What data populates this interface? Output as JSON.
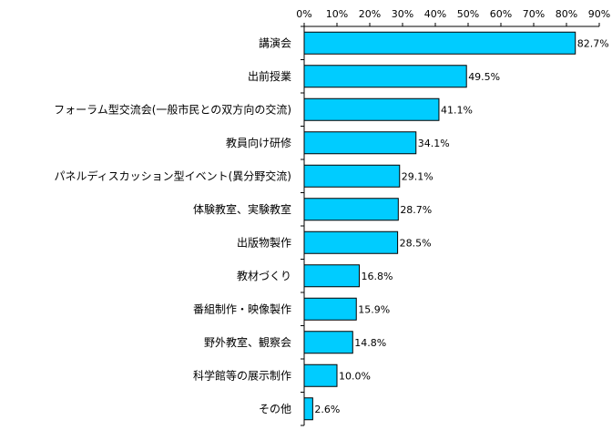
{
  "chart_data": {
    "type": "bar",
    "orientation": "horizontal",
    "categories": [
      "講演会",
      "出前授業",
      "フォーラム型交流会(一般市民との双方向の交流)",
      "教員向け研修",
      "パネルディスカッション型イベント(異分野交流)",
      "体験教室、実験教室",
      "出版物製作",
      "教材づくり",
      "番組制作・映像製作",
      "野外教室、観察会",
      "科学館等の展示制作",
      "その他"
    ],
    "values": [
      82.7,
      49.5,
      41.1,
      34.1,
      29.1,
      28.7,
      28.5,
      16.8,
      15.9,
      14.8,
      10.0,
      2.6
    ],
    "value_labels": [
      "82.7%",
      "49.5%",
      "41.1%",
      "34.1%",
      "29.1%",
      "28.7%",
      "28.5%",
      "16.8%",
      "15.9%",
      "14.8%",
      "10.0%",
      "2.6%"
    ],
    "x_ticks": [
      "0%",
      "10%",
      "20%",
      "30%",
      "40%",
      "50%",
      "60%",
      "70%",
      "80%",
      "90%"
    ],
    "xlim": [
      0,
      90
    ],
    "axis_position": "top",
    "grid": false,
    "title": "",
    "xlabel": "",
    "ylabel": "",
    "bar_color": "#00CCFF",
    "bar_edge_color": "#000000"
  }
}
